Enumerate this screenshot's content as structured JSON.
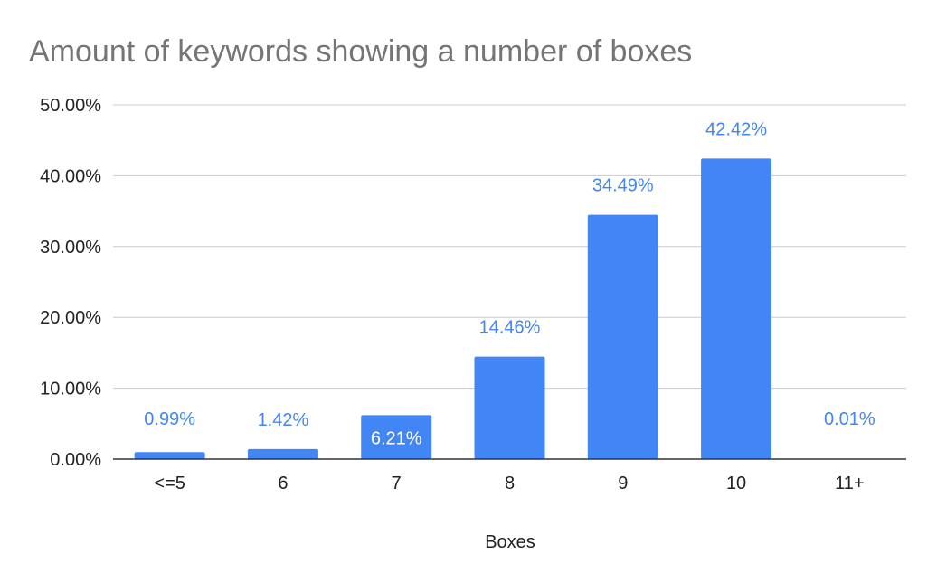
{
  "chart_data": {
    "type": "bar",
    "title": "Amount of keywords showing a number of boxes",
    "xlabel": "Boxes",
    "ylabel": "",
    "categories": [
      "<=5",
      "6",
      "7",
      "8",
      "9",
      "10",
      "11+"
    ],
    "values": [
      0.99,
      1.42,
      6.21,
      14.46,
      34.49,
      42.42,
      0.01
    ],
    "data_labels": [
      "0.99%",
      "1.42%",
      "6.21%",
      "14.46%",
      "34.49%",
      "42.42%",
      "0.01%"
    ],
    "yticks": [
      "0.00%",
      "10.00%",
      "20.00%",
      "30.00%",
      "40.00%",
      "50.00%"
    ],
    "ylim": [
      0,
      50
    ],
    "grid": true,
    "legend": "none",
    "colors": {
      "bar": "#4285f4",
      "label": "#4285f4",
      "label_inside": "#ffffff",
      "grid": "#cccccc",
      "axis": "#333333"
    }
  }
}
